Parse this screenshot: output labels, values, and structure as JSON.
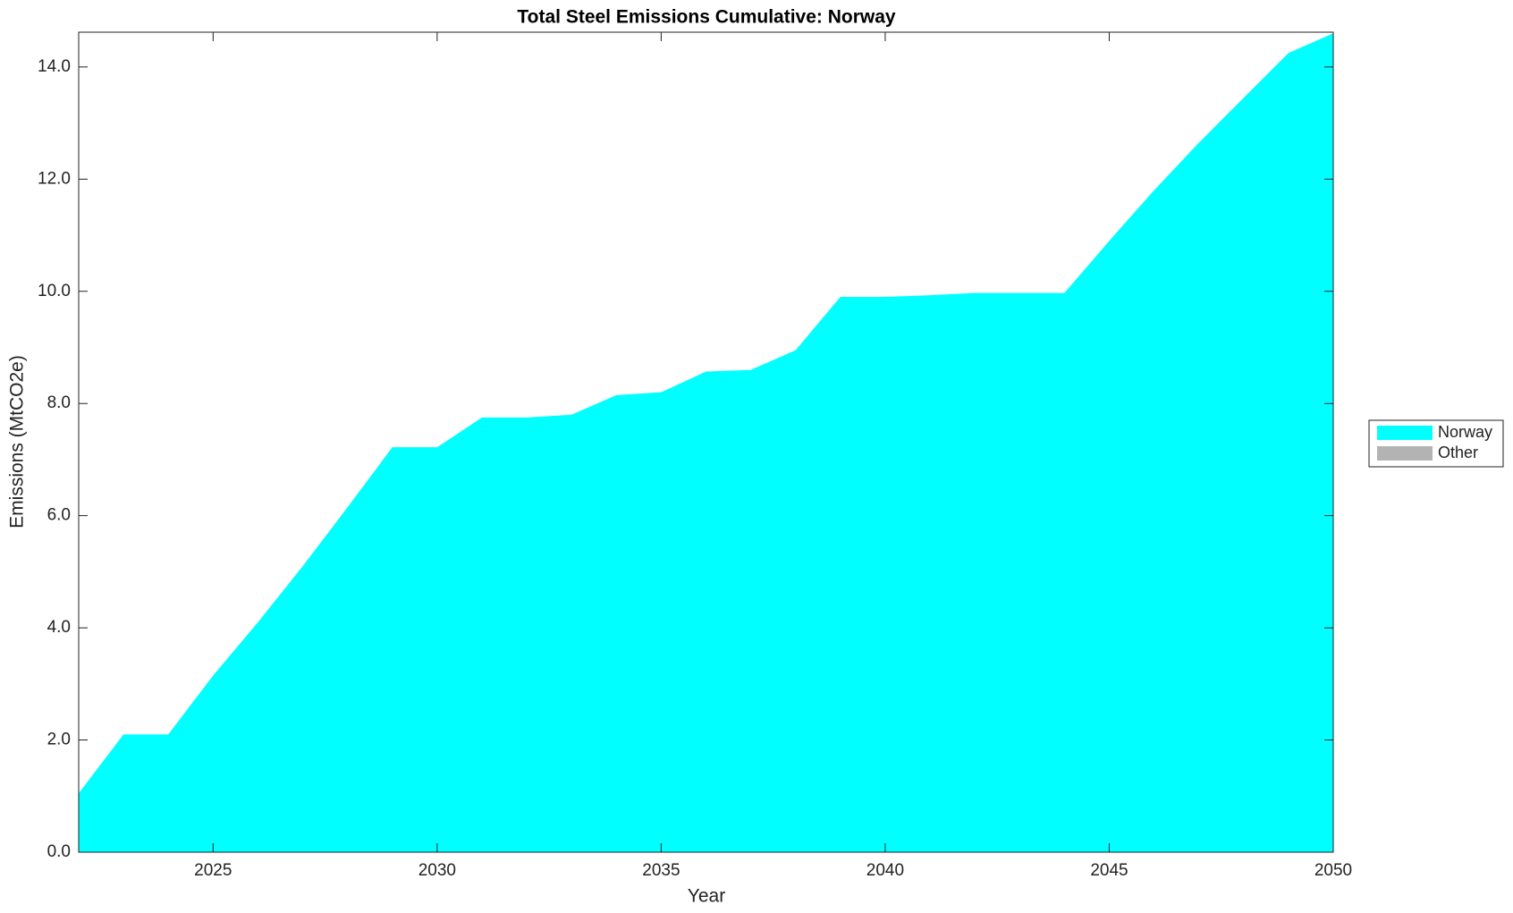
{
  "chart_data": {
    "type": "stacked_area",
    "title": "Total Steel Emissions Cumulative: Norway",
    "x_label": "Year",
    "y_label": "Emissions (MtCO2e)",
    "x": [
      2022,
      2023,
      2024,
      2025,
      2026,
      2027,
      2028,
      2029,
      2030,
      2031,
      2032,
      2033,
      2034,
      2035,
      2036,
      2037,
      2038,
      2039,
      2040,
      2041,
      2042,
      2043,
      2044,
      2045,
      2046,
      2047,
      2048,
      2049,
      2050
    ],
    "series": [
      {
        "name": "Norway",
        "color": "#00ffff",
        "values": [
          1.05,
          2.1,
          2.1,
          3.15,
          4.1,
          5.1,
          6.15,
          7.22,
          7.22,
          7.75,
          7.75,
          7.8,
          8.15,
          8.2,
          8.57,
          8.6,
          8.95,
          9.9,
          9.9,
          9.93,
          9.97,
          9.97,
          9.97,
          10.9,
          11.8,
          12.65,
          13.45,
          14.25,
          14.6
        ]
      },
      {
        "name": "Other",
        "color": "#b3b3b3",
        "values": [
          0,
          0,
          0,
          0,
          0,
          0,
          0,
          0,
          0,
          0,
          0,
          0,
          0,
          0,
          0,
          0,
          0,
          0,
          0,
          0,
          0,
          0,
          0,
          0,
          0,
          0,
          0,
          0,
          0
        ]
      }
    ],
    "xlim": [
      2022,
      2050
    ],
    "xticks": [
      2025,
      2030,
      2035,
      2040,
      2045,
      2050
    ],
    "ylim": [
      0,
      14.62
    ],
    "yticks": [
      {
        "value": 0,
        "label": "0.0"
      },
      {
        "value": 2,
        "label": "2.0"
      },
      {
        "value": 4,
        "label": "4.0"
      },
      {
        "value": 6,
        "label": "6.0"
      },
      {
        "value": 8,
        "label": "8.0"
      },
      {
        "value": 10,
        "label": "10.0"
      },
      {
        "value": 12,
        "label": "12.0"
      },
      {
        "value": 14,
        "label": "14.0"
      }
    ],
    "legend": "right"
  }
}
